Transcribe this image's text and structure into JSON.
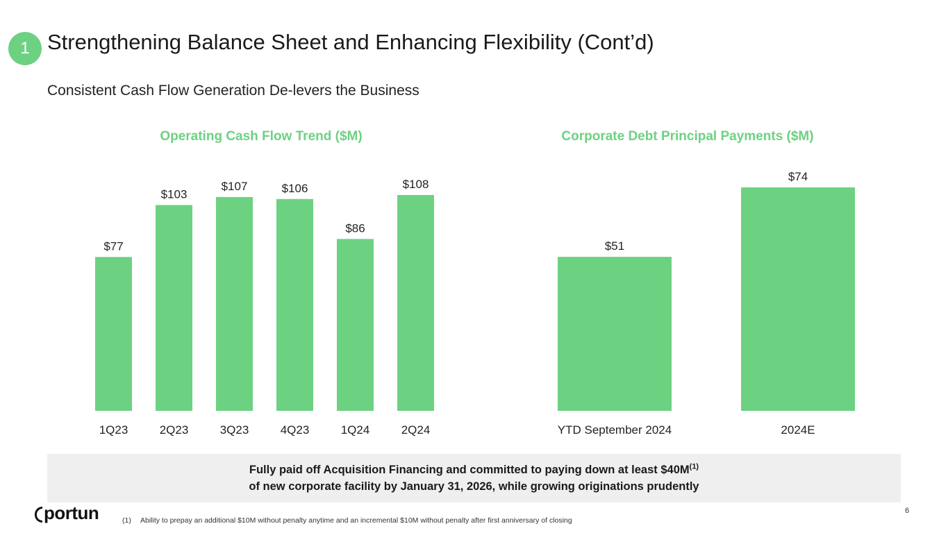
{
  "slide": {
    "badge": "1",
    "title": "Strengthening Balance Sheet and Enhancing Flexibility (Cont’d)",
    "subtitle": "Consistent Cash Flow Generation De-levers the Business",
    "callout_line1": "Fully paid off Acquisition Financing and committed to paying down at least $40M",
    "callout_sup": "(1)",
    "callout_line2": "of new corporate facility by January 31, 2026, while growing originations prudently",
    "logo": "portun",
    "footnote_num": "(1)",
    "footnote_text": "Ability to prepay an additional $10M without penalty anytime and an incremental $10M without penalty after first anniversary of closing",
    "page_number": "6"
  },
  "chart_data": [
    {
      "type": "bar",
      "title": "Operating Cash Flow Trend ($M)",
      "categories": [
        "1Q23",
        "2Q23",
        "3Q23",
        "4Q23",
        "1Q24",
        "2Q24"
      ],
      "values": [
        77,
        103,
        107,
        106,
        86,
        108
      ],
      "labels": [
        "$77",
        "$103",
        "$107",
        "$106",
        "$86",
        "$108"
      ],
      "ylim": [
        0,
        108
      ],
      "color": "#6dd182"
    },
    {
      "type": "bar",
      "title": "Corporate Debt Principal Payments ($M)",
      "categories": [
        "YTD September 2024",
        "2024E"
      ],
      "values": [
        51,
        74
      ],
      "labels": [
        "$51",
        "$74"
      ],
      "ylim": [
        0,
        74
      ],
      "color": "#6dd182"
    }
  ]
}
